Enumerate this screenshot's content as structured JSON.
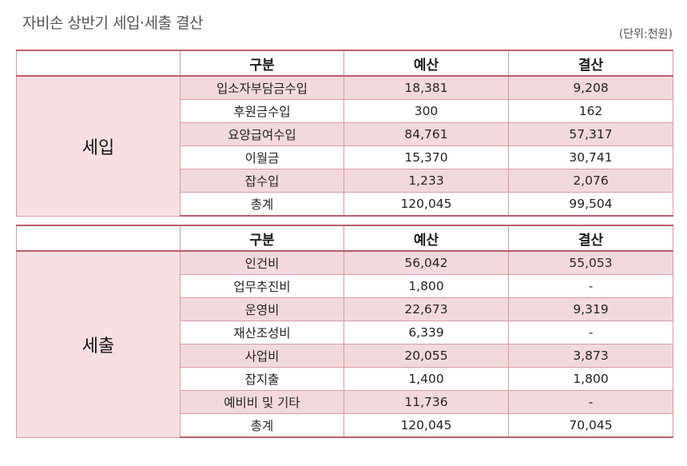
{
  "title": "자비손 상반기 세입·세출 결산",
  "unit": "(단위:천원)",
  "headers": {
    "category": "구분",
    "budget": "예산",
    "settlement": "결산"
  },
  "income": {
    "group": "세입",
    "rows": [
      {
        "item": "입소자부담금수입",
        "budget": "18,381",
        "settlement": "9,208",
        "shaded": true
      },
      {
        "item": "후원금수입",
        "budget": "300",
        "settlement": "162",
        "shaded": false
      },
      {
        "item": "요양급여수입",
        "budget": "84,761",
        "settlement": "57,317",
        "shaded": true
      },
      {
        "item": "이월금",
        "budget": "15,370",
        "settlement": "30,741",
        "shaded": false
      },
      {
        "item": "잡수입",
        "budget": "1,233",
        "settlement": "2,076",
        "shaded": true
      },
      {
        "item": "총계",
        "budget": "120,045",
        "settlement": "99,504",
        "shaded": false
      }
    ]
  },
  "expense": {
    "group": "세출",
    "rows": [
      {
        "item": "인건비",
        "budget": "56,042",
        "settlement": "55,053",
        "shaded": true
      },
      {
        "item": "업무추진비",
        "budget": "1,800",
        "settlement": "-",
        "shaded": false
      },
      {
        "item": "운영비",
        "budget": "22,673",
        "settlement": "9,319",
        "shaded": true
      },
      {
        "item": "재산조성비",
        "budget": "6,339",
        "settlement": "-",
        "shaded": false
      },
      {
        "item": "사업비",
        "budget": "20,055",
        "settlement": "3,873",
        "shaded": true
      },
      {
        "item": "잡지출",
        "budget": "1,400",
        "settlement": "1,800",
        "shaded": false
      },
      {
        "item": "예비비 및 기타",
        "budget": "11,736",
        "settlement": "-",
        "shaded": true
      },
      {
        "item": "총계",
        "budget": "120,045",
        "settlement": "70,045",
        "shaded": false
      }
    ]
  }
}
